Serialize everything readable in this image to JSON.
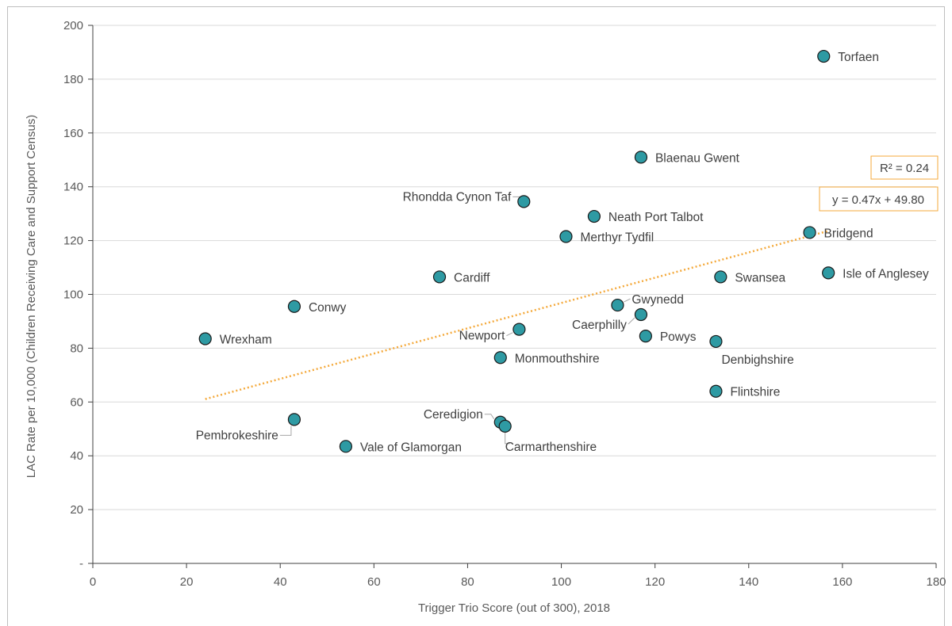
{
  "chart_data": {
    "type": "scatter",
    "xlabel": "Trigger Trio Score (out of 300), 2018",
    "ylabel": "LAC Rate per 10,000 (Children Receiving Care and Support Census)",
    "xlim": [
      0,
      180
    ],
    "ylim": [
      0,
      200
    ],
    "x_ticks": [
      "0",
      "20",
      "40",
      "60",
      "80",
      "100",
      "120",
      "140",
      "160",
      "180"
    ],
    "y_ticks": [
      "-",
      "20",
      "40",
      "60",
      "80",
      "100",
      "120",
      "140",
      "160",
      "180",
      "200"
    ],
    "grid": "horizontal",
    "marker_color": "#2e9aa3",
    "trendline_color": "#f4a93b",
    "trendline": {
      "slope": 0.47,
      "intercept": 49.8,
      "x_range": [
        24,
        157
      ]
    },
    "equation": "y = 0.47x + 49.80",
    "r_squared": "R² = 0.24",
    "points": [
      {
        "name": "Torfaen",
        "x": 156,
        "y": 188.5
      },
      {
        "name": "Blaenau Gwent",
        "x": 117,
        "y": 151
      },
      {
        "name": "Rhondda Cynon Taf",
        "x": 92,
        "y": 134.5
      },
      {
        "name": "Neath Port Talbot",
        "x": 107,
        "y": 129
      },
      {
        "name": "Merthyr Tydfil",
        "x": 101,
        "y": 121.5
      },
      {
        "name": "Bridgend",
        "x": 153,
        "y": 123
      },
      {
        "name": "Isle of Anglesey",
        "x": 157,
        "y": 108
      },
      {
        "name": "Swansea",
        "x": 134,
        "y": 106.5
      },
      {
        "name": "Cardiff",
        "x": 74,
        "y": 106.5
      },
      {
        "name": "Conwy",
        "x": 43,
        "y": 95.5
      },
      {
        "name": "Gwynedd",
        "x": 112,
        "y": 96
      },
      {
        "name": "Caerphilly",
        "x": 117,
        "y": 92.5
      },
      {
        "name": "Newport",
        "x": 91,
        "y": 87
      },
      {
        "name": "Powys",
        "x": 118,
        "y": 84.5
      },
      {
        "name": "Denbighshire",
        "x": 133,
        "y": 82.5
      },
      {
        "name": "Wrexham",
        "x": 24,
        "y": 83.5
      },
      {
        "name": "Monmouthshire",
        "x": 87,
        "y": 76.5
      },
      {
        "name": "Flintshire",
        "x": 133,
        "y": 64
      },
      {
        "name": "Ceredigion",
        "x": 87,
        "y": 52.5
      },
      {
        "name": "Carmarthenshire",
        "x": 88,
        "y": 51
      },
      {
        "name": "Pembrokeshire",
        "x": 43,
        "y": 53.5
      },
      {
        "name": "Vale of Glamorgan",
        "x": 54,
        "y": 43.5
      }
    ]
  }
}
